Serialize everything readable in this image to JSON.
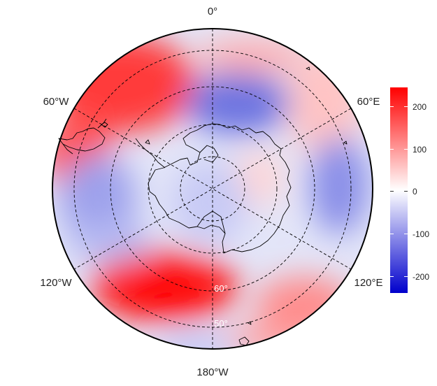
{
  "map": {
    "longitude_labels": {
      "top": "0°",
      "upper_left": "60°W",
      "upper_right": "60°E",
      "lower_left": "120°W",
      "lower_right": "120°E",
      "bottom": "180°W"
    },
    "latitude_labels": [
      "60°",
      "50°"
    ],
    "colors": {
      "positive_max": "#ff0000",
      "neutral": "#ffffff",
      "negative_min": "#0000cc",
      "coastline": "#000000",
      "graticule": "#000000"
    }
  },
  "colorbar": {
    "ticks": [
      "200",
      "100",
      "0",
      "-100",
      "-200"
    ],
    "range": [
      -240,
      240
    ]
  }
}
